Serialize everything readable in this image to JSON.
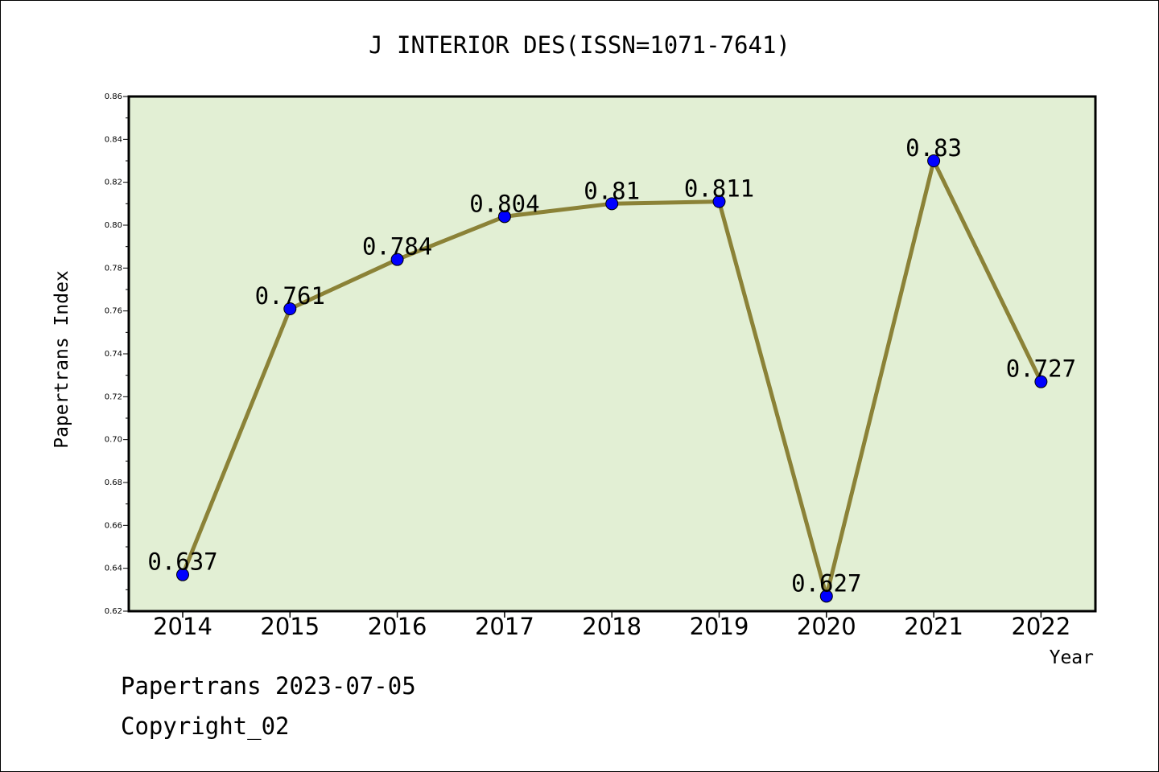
{
  "chart_data": {
    "type": "line",
    "title": "J INTERIOR DES(ISSN=1071-7641)",
    "xlabel": "Year",
    "ylabel": "Papertrans Index",
    "categories": [
      "2014",
      "2015",
      "2016",
      "2017",
      "2018",
      "2019",
      "2020",
      "2021",
      "2022"
    ],
    "series": [
      {
        "values": [
          0.637,
          0.761,
          0.784,
          0.804,
          0.81,
          0.811,
          0.627,
          0.83,
          0.727
        ],
        "data_labels": [
          "0.637",
          "0.761",
          "0.784",
          "0.804",
          "0.81",
          "0.811",
          "0.627",
          "0.83",
          "0.727"
        ]
      }
    ],
    "ylim": [
      0.62,
      0.86
    ],
    "yticks": [
      "0.62",
      "0.64",
      "0.66",
      "0.68",
      "0.70",
      "0.72",
      "0.74",
      "0.76",
      "0.78",
      "0.80",
      "0.82",
      "0.84",
      "0.86"
    ],
    "grid": false,
    "colors": {
      "plot_background": "#e2efd4",
      "line": "#8b8237",
      "marker": "#0000ff"
    }
  },
  "footer": {
    "source": "Papertrans 2023-07-05",
    "copyright": "Copyright_02"
  }
}
